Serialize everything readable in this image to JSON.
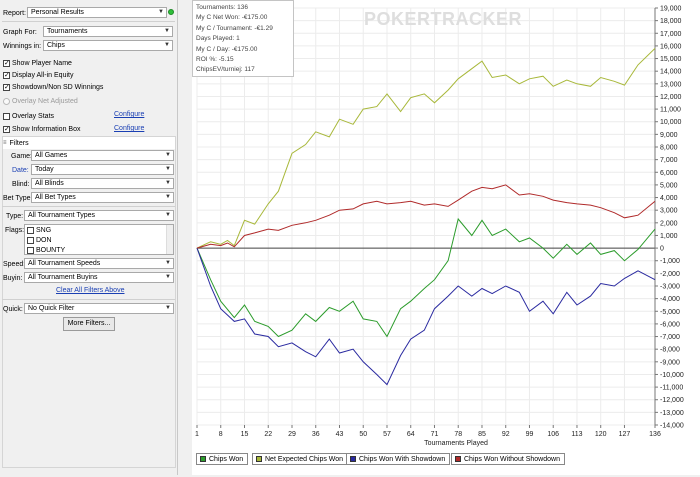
{
  "panel": {
    "report_label": "Report:",
    "report_value": "Personal Results",
    "graph_for_label": "Graph For:",
    "graph_for_value": "Tournaments",
    "winnings_in_label": "Winnings in:",
    "winnings_in_value": "Chips",
    "checks": [
      {
        "label": "Show Player Name",
        "checked": true
      },
      {
        "label": "Display All-in Equity",
        "checked": true
      },
      {
        "label": "Showdown/Non SD Winnings",
        "checked": true
      }
    ],
    "overlay_adjusted_label": "Overlay Net Adjusted",
    "overlay_stats_label": "Overlay Stats",
    "show_info_label": "Show Information Box",
    "configure_link": "Configure",
    "filters_header": "Filters",
    "game_label": "Game:",
    "game_value": "All Games",
    "date_label": "Date:",
    "date_value": "Today",
    "blind_label": "Blind:",
    "blind_value": "All Blinds",
    "bettype_label": "Bet Type:",
    "bettype_value": "All Bet Types",
    "type_label": "Type:",
    "type_value": "All Tournament Types",
    "flags_label": "Flags:",
    "flags": [
      "SNG",
      "DON",
      "BOUNTY"
    ],
    "speed_label": "Speed:",
    "speed_value": "All Tournament Speeds",
    "buyin_label": "Buyin:",
    "buyin_value": "All Tournament Buyins",
    "clear_filters": "Clear All Filters Above",
    "quick_label": "Quick:",
    "quick_value": "No Quick Filter",
    "more_filters": "More Filters..."
  },
  "info_box": [
    "Tournaments: 136",
    "My C Net Won: -€175.00",
    "My C / Tournament: -€1.29",
    "Days Played: 1",
    "My C / Day: -€175.00",
    "ROI %: -5.15",
    "ChipsEV/turniej: 117"
  ],
  "watermark": "POKERTRACKER",
  "chart_data": {
    "type": "line",
    "xlabel": "Tournaments Played",
    "ylabel": "",
    "x_ticks": [
      "1",
      "8",
      "15",
      "22",
      "29",
      "36",
      "43",
      "50",
      "57",
      "64",
      "71",
      "78",
      "85",
      "92",
      "99",
      "106",
      "113",
      "120",
      "127",
      "136"
    ],
    "xlim": [
      1,
      136
    ],
    "ylim": [
      -14000,
      19000
    ],
    "y_ticks": [
      -14000,
      -13000,
      -12000,
      -11000,
      -10000,
      -9000,
      -8000,
      -7000,
      -6000,
      -5000,
      -4000,
      -3000,
      -2000,
      -1000,
      0,
      1000,
      2000,
      3000,
      4000,
      5000,
      6000,
      7000,
      8000,
      9000,
      10000,
      11000,
      12000,
      13000,
      14000,
      15000,
      16000,
      17000,
      18000,
      19000
    ],
    "y_tick_labels": [
      "-14,000",
      "-13,000",
      "-12,000",
      "-11,000",
      "-10,000",
      "-9,000",
      "-8,000",
      "-7,000",
      "-6,000",
      "-5,000",
      "-4,000",
      "-3,000",
      "-2,000",
      "-1,000",
      "0",
      "1,000",
      "2,000",
      "3,000",
      "4,000",
      "5,000",
      "6,000",
      "7,000",
      "8,000",
      "9,000",
      "10,000",
      "11,000",
      "12,000",
      "13,000",
      "14,000",
      "15,000",
      "16,000",
      "17,000",
      "18,000",
      "19,000"
    ],
    "grid": true,
    "legend_position": "bottom",
    "series": [
      {
        "name": "Chips Won",
        "color": "#2c9c2c",
        "x": [
          1,
          5,
          8,
          12,
          15,
          18,
          22,
          25,
          29,
          33,
          36,
          40,
          43,
          47,
          50,
          54,
          57,
          61,
          64,
          68,
          71,
          75,
          78,
          82,
          85,
          88,
          92,
          96,
          99,
          103,
          106,
          110,
          113,
          117,
          120,
          124,
          127,
          131,
          136
        ],
        "y": [
          0,
          -2500,
          -4200,
          -5500,
          -4500,
          -5800,
          -6200,
          -7000,
          -6500,
          -5200,
          -5800,
          -4700,
          -5000,
          -4200,
          -5600,
          -5800,
          -7000,
          -4800,
          -4200,
          -3200,
          -2500,
          -1000,
          2300,
          1000,
          2200,
          1000,
          1500,
          500,
          800,
          0,
          -800,
          300,
          -500,
          400,
          -500,
          -200,
          -1000,
          -100,
          1500
        ]
      },
      {
        "name": "Net Expected Chips Won",
        "color": "#a8b83a",
        "x": [
          1,
          5,
          8,
          10,
          12,
          15,
          18,
          22,
          25,
          29,
          33,
          36,
          40,
          43,
          47,
          50,
          54,
          57,
          61,
          64,
          68,
          71,
          75,
          78,
          82,
          85,
          88,
          92,
          96,
          99,
          103,
          106,
          110,
          113,
          117,
          120,
          124,
          127,
          131,
          136
        ],
        "y": [
          0,
          500,
          300,
          600,
          200,
          2200,
          1900,
          3500,
          4500,
          7500,
          8200,
          9200,
          8800,
          10200,
          9800,
          11000,
          11200,
          12200,
          10800,
          11900,
          12200,
          11500,
          12500,
          13400,
          14200,
          14800,
          13500,
          13700,
          13000,
          13400,
          13600,
          12800,
          13300,
          13000,
          12800,
          13500,
          13200,
          12900,
          14500,
          15800
        ]
      },
      {
        "name": "Chips Won With Showdown",
        "color": "#2a2aa0",
        "x": [
          1,
          5,
          8,
          12,
          15,
          18,
          22,
          25,
          29,
          33,
          36,
          40,
          43,
          47,
          50,
          54,
          57,
          61,
          64,
          68,
          71,
          75,
          78,
          82,
          85,
          88,
          92,
          96,
          99,
          103,
          106,
          110,
          113,
          117,
          120,
          124,
          127,
          131,
          136
        ],
        "y": [
          0,
          -3000,
          -4800,
          -5800,
          -5600,
          -6800,
          -7000,
          -7800,
          -7500,
          -8200,
          -8600,
          -7200,
          -8300,
          -8000,
          -9000,
          -10000,
          -10800,
          -8500,
          -7200,
          -6500,
          -4800,
          -3800,
          -3000,
          -3800,
          -3200,
          -3600,
          -3000,
          -3500,
          -5000,
          -4200,
          -5200,
          -3500,
          -4500,
          -3800,
          -2800,
          -3000,
          -2400,
          -1800,
          -2500
        ]
      },
      {
        "name": "Chips Won Without Showdown",
        "color": "#b02a2a",
        "x": [
          1,
          5,
          8,
          10,
          12,
          15,
          18,
          22,
          25,
          29,
          33,
          36,
          40,
          43,
          47,
          50,
          54,
          57,
          61,
          64,
          68,
          71,
          75,
          78,
          82,
          85,
          88,
          92,
          96,
          99,
          103,
          106,
          110,
          113,
          117,
          120,
          124,
          127,
          131,
          136
        ],
        "y": [
          0,
          300,
          200,
          400,
          100,
          1000,
          1200,
          1500,
          1400,
          1800,
          2000,
          2200,
          2600,
          3000,
          3100,
          3500,
          3700,
          3500,
          3600,
          3700,
          3400,
          3500,
          3300,
          3800,
          4500,
          4800,
          4700,
          5000,
          4200,
          4300,
          4100,
          3800,
          3600,
          3500,
          3400,
          3200,
          2800,
          2400,
          2600,
          3700
        ]
      }
    ]
  }
}
